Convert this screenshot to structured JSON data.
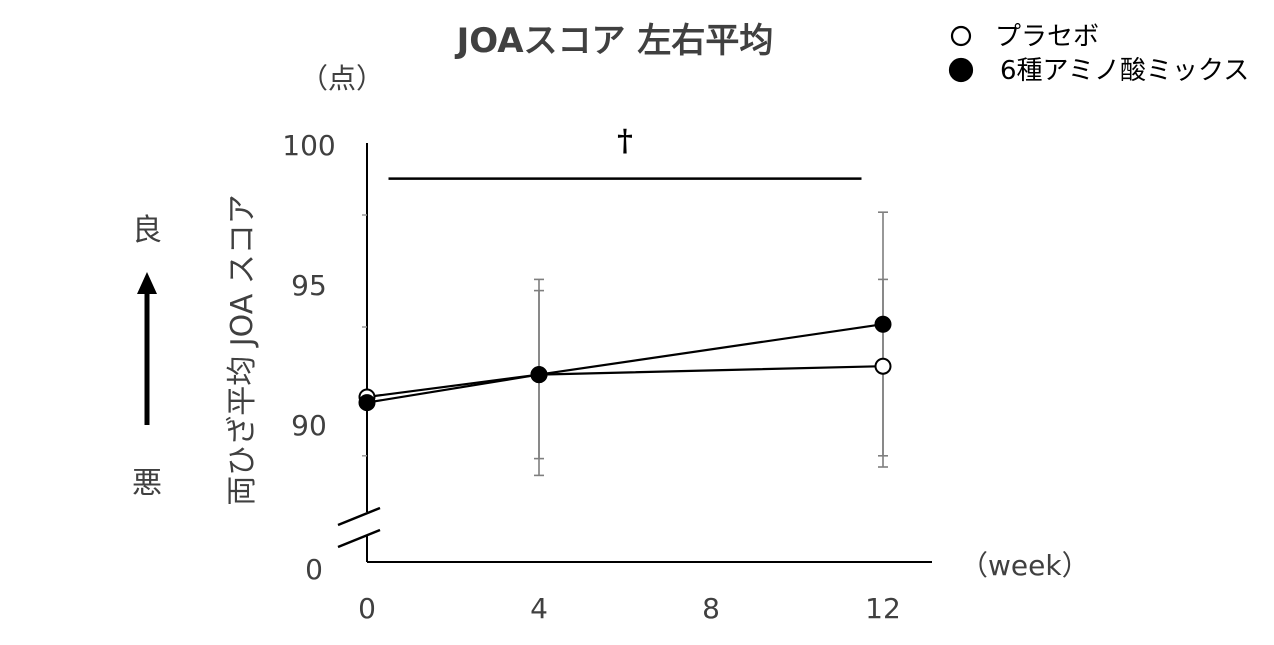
{
  "chart_data": {
    "type": "line",
    "title": "JOAスコア 左右平均",
    "y_unit": "（点）",
    "ylabel": "両ひざ平均 JOA スコア",
    "x_unit": "（week）",
    "x": [
      0,
      4,
      12
    ],
    "x_ticks": [
      "0",
      "4",
      "8",
      "12"
    ],
    "y_ticks": [
      "100",
      "95",
      "90"
    ],
    "y_break_label": "0",
    "ylim": [
      87.5,
      100
    ],
    "xlim": [
      0,
      13
    ],
    "series": [
      {
        "name": "プラセボ",
        "marker": "open-circle",
        "values": [
          91.0,
          91.8,
          92.1
        ],
        "err_low": [
          null,
          88.8,
          88.9
        ],
        "err_high": [
          null,
          94.8,
          95.2
        ]
      },
      {
        "name": "6種アミノ酸ミックス",
        "marker": "filled-circle",
        "values": [
          90.8,
          91.8,
          93.6
        ],
        "err_low": [
          null,
          88.2,
          88.5
        ],
        "err_high": [
          null,
          95.2,
          97.6
        ]
      }
    ],
    "significance": {
      "symbol": "†",
      "from": 0.5,
      "to": 11.5,
      "y": 98.8
    },
    "legend_position": "top-right",
    "grid": false
  },
  "direction": {
    "good": "良",
    "bad": "悪"
  },
  "colors": {
    "line": "#000000",
    "text": "#404040",
    "errorbar": "#7f7f7f",
    "axis": "#000000"
  }
}
